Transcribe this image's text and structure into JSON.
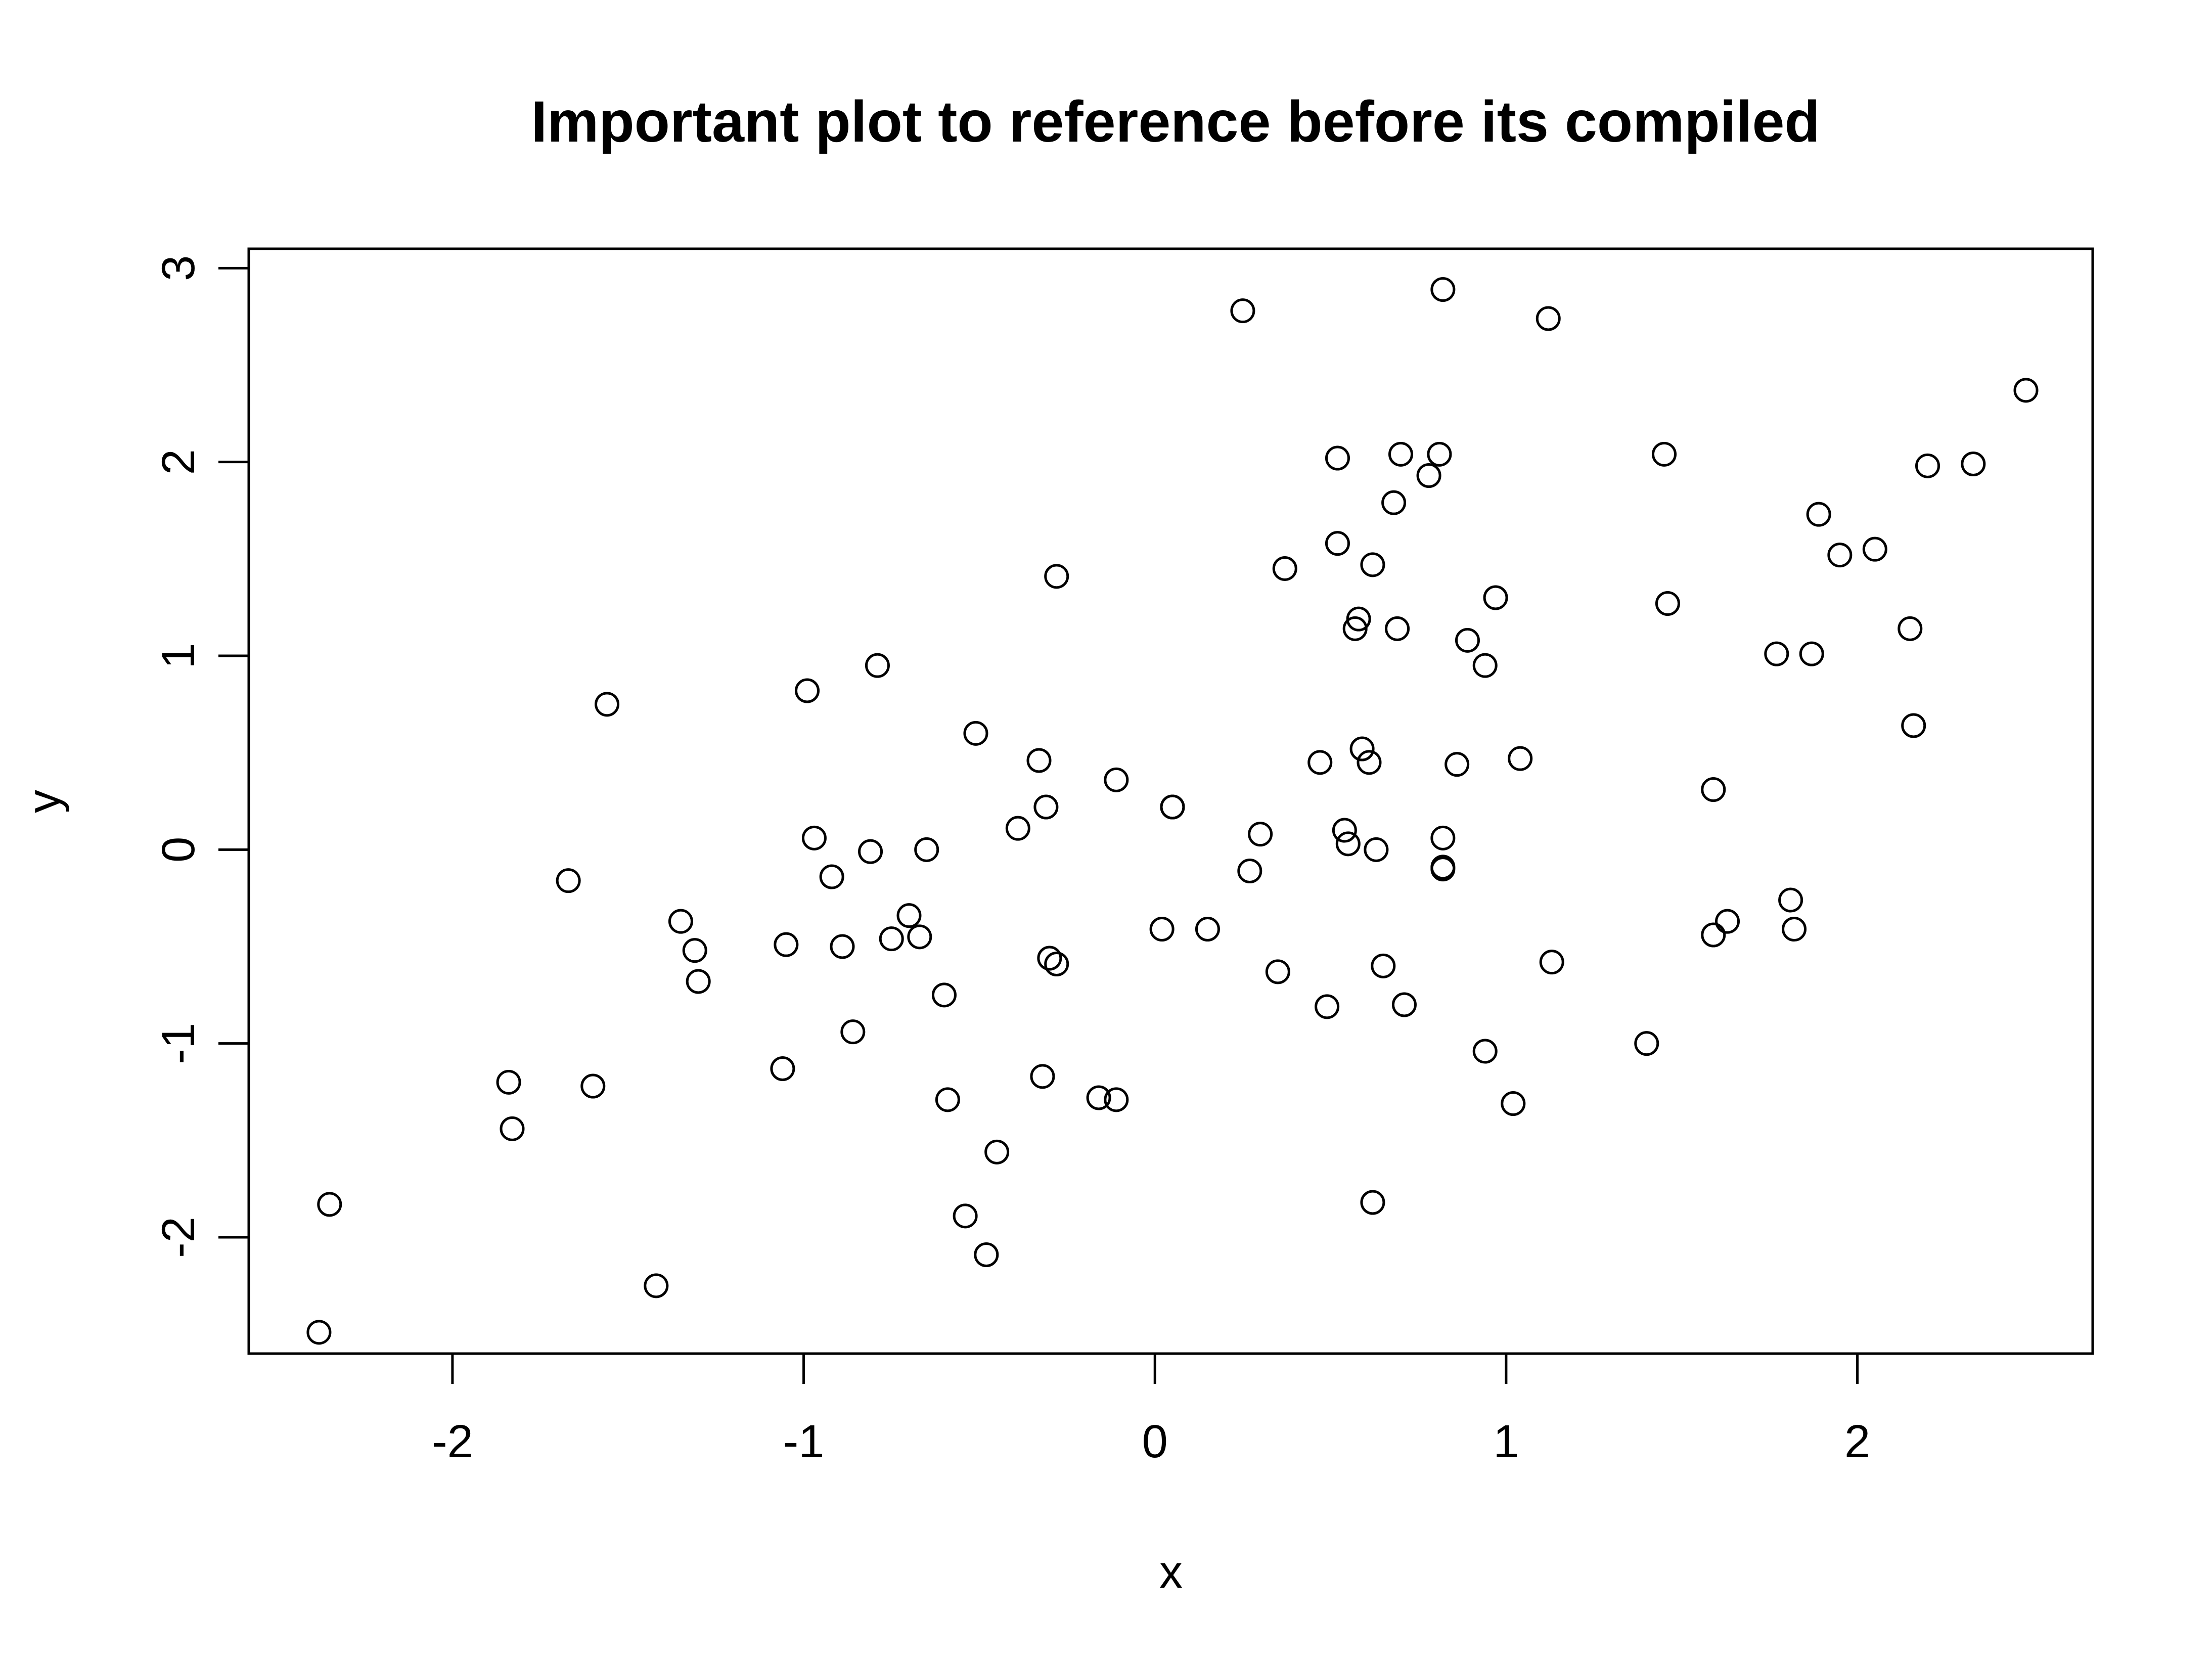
{
  "chart_data": {
    "type": "scatter",
    "title": "Important plot to reference before its compiled",
    "xlabel": "x",
    "ylabel": "y",
    "xlim": [
      -2.58,
      2.67
    ],
    "ylim": [
      -2.6,
      3.1
    ],
    "x_ticks": [
      -2,
      -1,
      0,
      1,
      2
    ],
    "y_ticks": [
      -2,
      -1,
      0,
      1,
      2,
      3
    ],
    "x_tick_labels": [
      "-2",
      "-1",
      "0",
      "1",
      "2"
    ],
    "y_tick_labels": [
      "-2",
      "-1",
      "0",
      "1",
      "2",
      "3"
    ],
    "grid": false,
    "marker": "open-circle",
    "points": [
      [
        -2.38,
        -2.49
      ],
      [
        -2.35,
        -1.83
      ],
      [
        -1.84,
        -1.2
      ],
      [
        -1.83,
        -1.44
      ],
      [
        -1.67,
        -0.16
      ],
      [
        -1.6,
        -1.22
      ],
      [
        -1.56,
        0.75
      ],
      [
        -1.42,
        -2.25
      ],
      [
        -1.35,
        -0.37
      ],
      [
        -1.31,
        -0.52
      ],
      [
        -1.3,
        -0.68
      ],
      [
        -1.06,
        -1.13
      ],
      [
        -1.05,
        -0.49
      ],
      [
        -0.99,
        0.82
      ],
      [
        -0.97,
        0.06
      ],
      [
        -0.92,
        -0.14
      ],
      [
        -0.89,
        -0.5
      ],
      [
        -0.86,
        -0.94
      ],
      [
        -0.81,
        -0.01
      ],
      [
        -0.79,
        0.95
      ],
      [
        -0.75,
        -0.46
      ],
      [
        -0.7,
        -0.34
      ],
      [
        -0.67,
        -0.45
      ],
      [
        -0.65,
        0.0
      ],
      [
        -0.6,
        -0.75
      ],
      [
        -0.59,
        -1.29
      ],
      [
        -0.54,
        -1.89
      ],
      [
        -0.51,
        0.6
      ],
      [
        -0.48,
        -2.09
      ],
      [
        -0.45,
        -1.56
      ],
      [
        -0.39,
        0.11
      ],
      [
        -0.33,
        0.46
      ],
      [
        -0.32,
        -1.17
      ],
      [
        -0.31,
        0.22
      ],
      [
        -0.3,
        -0.56
      ],
      [
        -0.28,
        -0.59
      ],
      [
        -0.28,
        1.41
      ],
      [
        -0.16,
        -1.28
      ],
      [
        -0.11,
        -1.29
      ],
      [
        -0.11,
        0.36
      ],
      [
        0.02,
        -0.41
      ],
      [
        0.05,
        0.22
      ],
      [
        0.05,
        0.22
      ],
      [
        0.15,
        -0.41
      ],
      [
        0.25,
        2.78
      ],
      [
        0.27,
        -0.11
      ],
      [
        0.3,
        0.08
      ],
      [
        0.35,
        -0.63
      ],
      [
        0.37,
        1.45
      ],
      [
        0.47,
        0.45
      ],
      [
        0.49,
        -0.81
      ],
      [
        0.52,
        2.02
      ],
      [
        0.52,
        1.58
      ],
      [
        0.54,
        0.1
      ],
      [
        0.55,
        0.03
      ],
      [
        0.57,
        1.14
      ],
      [
        0.58,
        1.19
      ],
      [
        0.59,
        0.52
      ],
      [
        0.61,
        0.45
      ],
      [
        0.62,
        -1.82
      ],
      [
        0.62,
        1.47
      ],
      [
        0.63,
        0.0
      ],
      [
        0.65,
        -0.6
      ],
      [
        0.68,
        1.79
      ],
      [
        0.69,
        1.14
      ],
      [
        0.7,
        2.04
      ],
      [
        0.71,
        -0.8
      ],
      [
        0.78,
        1.93
      ],
      [
        0.81,
        2.04
      ],
      [
        0.82,
        -0.09
      ],
      [
        0.82,
        -0.1
      ],
      [
        0.82,
        0.06
      ],
      [
        0.82,
        2.89
      ],
      [
        0.86,
        0.44
      ],
      [
        0.89,
        1.08
      ],
      [
        0.94,
        -1.04
      ],
      [
        0.94,
        0.95
      ],
      [
        0.97,
        1.3
      ],
      [
        1.02,
        -1.31
      ],
      [
        1.04,
        0.47
      ],
      [
        1.12,
        2.74
      ],
      [
        1.13,
        -0.58
      ],
      [
        1.4,
        -1.0
      ],
      [
        1.45,
        2.04
      ],
      [
        1.46,
        1.27
      ],
      [
        1.59,
        -0.44
      ],
      [
        1.59,
        0.31
      ],
      [
        1.63,
        -0.37
      ],
      [
        1.77,
        1.01
      ],
      [
        1.81,
        -0.26
      ],
      [
        1.82,
        -0.41
      ],
      [
        1.87,
        1.01
      ],
      [
        1.89,
        1.73
      ],
      [
        1.95,
        1.52
      ],
      [
        2.05,
        1.55
      ],
      [
        2.15,
        1.14
      ],
      [
        2.16,
        0.64
      ],
      [
        2.2,
        1.98
      ],
      [
        2.33,
        1.99
      ],
      [
        2.48,
        2.37
      ]
    ]
  }
}
